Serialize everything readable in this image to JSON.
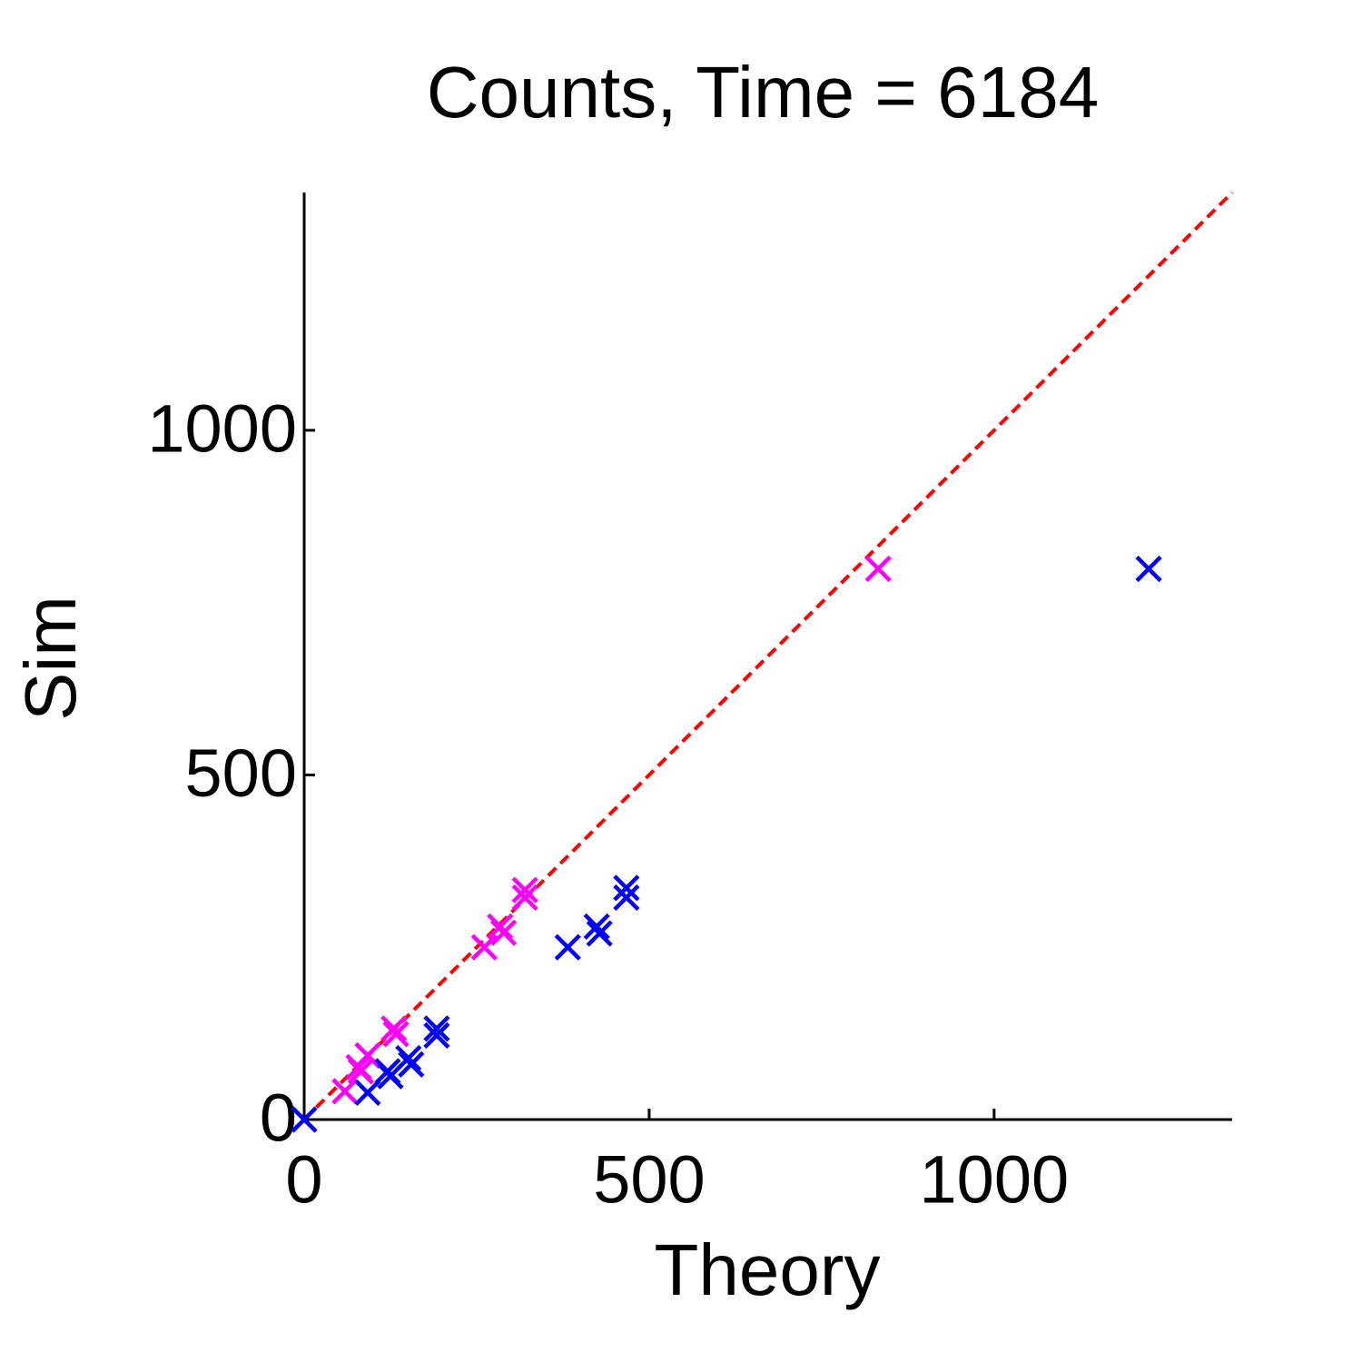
{
  "chart_data": {
    "type": "scatter",
    "title": "Counts, Time = 6184",
    "x_label": "Theory",
    "y_label": "Sim",
    "xlim": [
      0,
      1345
    ],
    "ylim": [
      0,
      1345
    ],
    "xticks": [
      0,
      500,
      1000
    ],
    "yticks": [
      0,
      500,
      1000
    ],
    "identity_line": {
      "color": "#ff0000",
      "dashed": true
    },
    "series": [
      {
        "color": "#ff00ff",
        "x": [
          832,
          320,
          320,
          284,
          289,
          261,
          130,
          133,
          92,
          79,
          82,
          59
        ],
        "values": [
          799,
          333,
          322,
          280,
          271,
          250,
          132,
          124,
          93,
          76,
          70,
          41
        ]
      },
      {
        "color": "#0000ff",
        "x": [
          1224,
          467,
          467,
          424,
          428,
          382,
          192,
          192,
          151,
          155,
          121,
          125,
          92,
          0
        ],
        "values": [
          799,
          336,
          322,
          280,
          270,
          250,
          132,
          122,
          89,
          80,
          70,
          63,
          39,
          0
        ]
      }
    ]
  }
}
